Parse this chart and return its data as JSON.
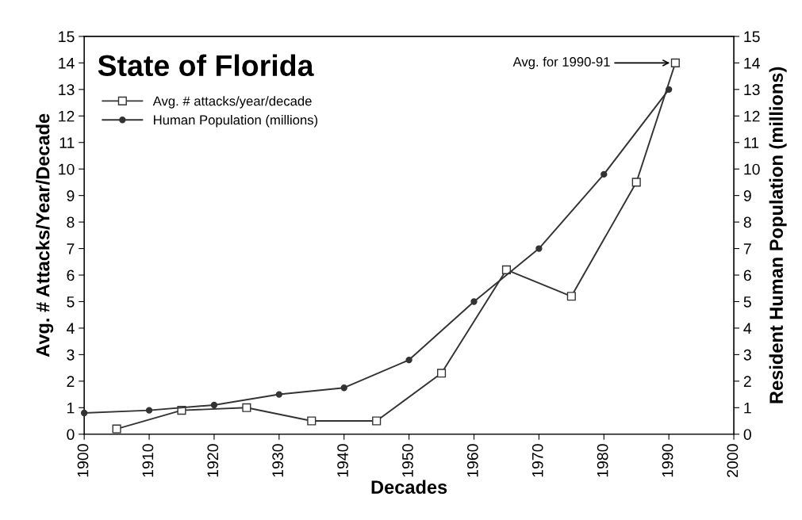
{
  "chart_data": {
    "type": "line",
    "title": "State of Florida",
    "xlabel": "Decades",
    "ylabel": "Avg. # Attacks/Year/Decade",
    "y2label": "Resident Human Population (millions)",
    "xlim": [
      1900,
      2000
    ],
    "xticks": [
      1900,
      1910,
      1920,
      1930,
      1940,
      1950,
      1960,
      1970,
      1980,
      1990,
      2000
    ],
    "ylim": [
      0,
      15
    ],
    "yticks": [
      0,
      1,
      2,
      3,
      4,
      5,
      6,
      7,
      8,
      9,
      10,
      11,
      12,
      13,
      14,
      15
    ],
    "y2lim": [
      0,
      15
    ],
    "y2ticks": [
      0,
      1,
      2,
      3,
      4,
      5,
      6,
      7,
      8,
      9,
      10,
      11,
      12,
      13,
      14,
      15
    ],
    "grid": false,
    "legend": "top left",
    "series": [
      {
        "name": "Avg. # attacks/year/decade",
        "color": "#333333",
        "marker": "square",
        "x": [
          1905,
          1915,
          1925,
          1935,
          1945,
          1955,
          1965,
          1975,
          1985,
          1991
        ],
        "values": [
          0.2,
          0.9,
          1.0,
          0.5,
          0.5,
          2.3,
          6.2,
          5.2,
          9.5,
          14
        ]
      },
      {
        "name": "Human Population (millions)",
        "color": "#333333",
        "marker": "circle",
        "axis": "y2",
        "x": [
          1900,
          1910,
          1920,
          1930,
          1940,
          1950,
          1960,
          1970,
          1980,
          1990
        ],
        "values": [
          0.8,
          0.9,
          1.1,
          1.5,
          1.75,
          2.8,
          5.0,
          7.0,
          9.8,
          13.0
        ]
      }
    ],
    "annotations": [
      {
        "text": "Avg. for 1990-91",
        "x": 1991,
        "y": 14
      }
    ]
  }
}
